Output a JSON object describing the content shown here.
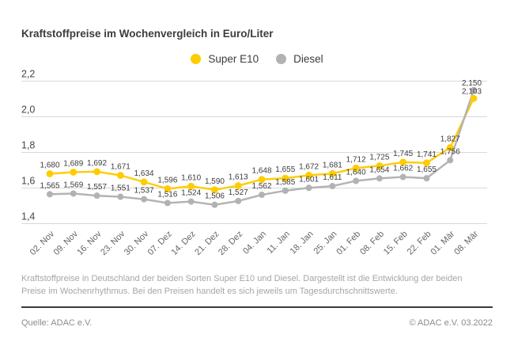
{
  "title": "Kraftstoffpreise im Wochenvergleich in Euro/Liter",
  "chart_data": {
    "type": "line",
    "title": "Kraftstoffpreise im Wochenvergleich in Euro/Liter",
    "unit": "Euro/Liter",
    "categories": [
      "02. Nov",
      "09. Nov",
      "16. Nov",
      "23. Nov",
      "30. Nov",
      "07. Dez",
      "14. Dez",
      "21. Dez",
      "28. Dez",
      "04. Jan",
      "11. Jan",
      "18. Jan",
      "25. Jan",
      "01. Feb",
      "08. Feb",
      "15. Feb",
      "22. Feb",
      "01. Mär",
      "08. Mär"
    ],
    "series": [
      {
        "name": "Super E10",
        "color": "#ffcc00",
        "values": [
          1.68,
          1.689,
          1.692,
          1.671,
          1.634,
          1.596,
          1.61,
          1.59,
          1.613,
          1.648,
          1.655,
          1.672,
          1.681,
          1.712,
          1.725,
          1.745,
          1.741,
          1.827,
          2.103
        ]
      },
      {
        "name": "Diesel",
        "color": "#b2b2b2",
        "values": [
          1.565,
          1.569,
          1.557,
          1.551,
          1.537,
          1.516,
          1.524,
          1.506,
          1.527,
          1.562,
          1.585,
          1.601,
          1.611,
          1.64,
          1.654,
          1.662,
          1.655,
          1.756,
          2.15
        ]
      }
    ],
    "ylim": [
      1.4,
      2.2
    ],
    "y_ticks": [
      2.2,
      2.0,
      1.8,
      1.6,
      1.4
    ],
    "y_tick_labels": [
      "2,2",
      "2,0",
      "1,8",
      "1,6",
      "1,4"
    ],
    "grid": true,
    "legend_position": "top-center",
    "value_labels": true,
    "value_label_format": "comma-3-decimals",
    "colors": {
      "grid_line": "#d8d8d8",
      "value_label": "#3c3c3c",
      "y_tick_label": "#464646",
      "x_tick_label": "#666666"
    }
  },
  "footer": {
    "description": "Kraftstoffpreise in Deutschland der beiden Sorten Super E10 und Diesel. Dargestellt ist die Entwicklung der beiden Preise im Wochenrhythmus. Bei den Preisen handelt es sich jeweils um Tagesdurchschnittswerte.",
    "source": "Quelle: ADAC e.V.",
    "copyright": "© ADAC e.V. 03.2022"
  }
}
